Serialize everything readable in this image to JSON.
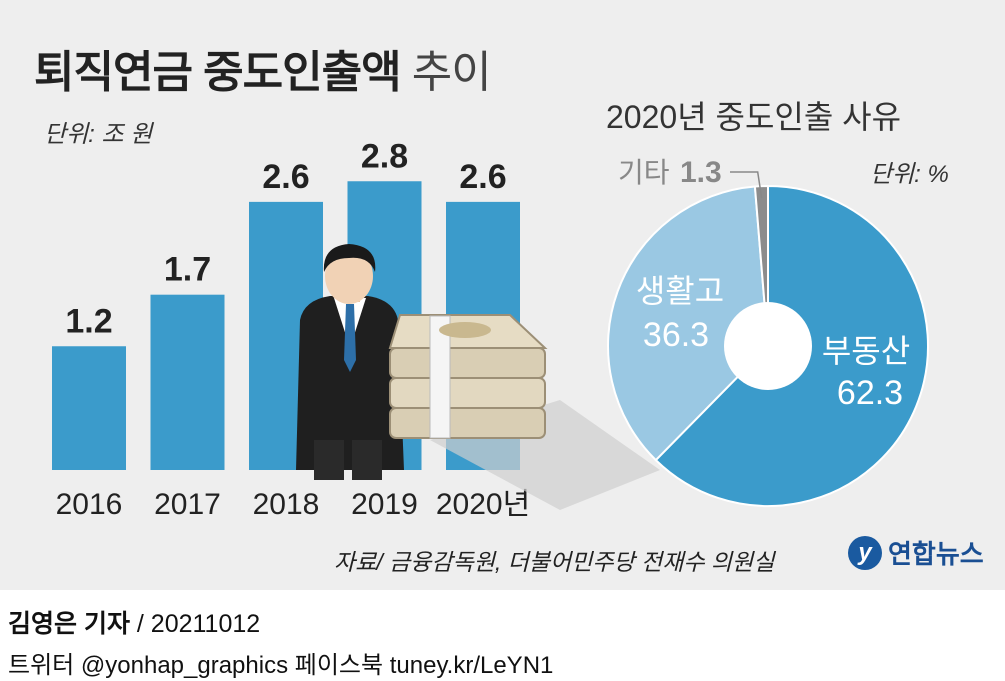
{
  "header": {
    "title_bold": "퇴직연금 중도인출액",
    "title_light": "추이"
  },
  "bar_unit": "단위: 조 원",
  "pie_title": "2020년 중도인출 사유",
  "pie_unit": "단위: %",
  "chart_data": [
    {
      "type": "bar",
      "title": "퇴직연금 중도인출액 추이",
      "ylabel": "조 원",
      "categories": [
        "2016",
        "2017",
        "2018",
        "2019",
        "2020년"
      ],
      "values": [
        1.2,
        1.7,
        2.6,
        2.8,
        2.6
      ],
      "value_labels": [
        "1.2",
        "1.7",
        "2.6",
        "2.8",
        "2.6"
      ],
      "ylim": [
        0,
        3.2
      ],
      "color": "#3b9bcb"
    },
    {
      "type": "pie",
      "title": "2020년 중도인출 사유",
      "unit": "%",
      "slices": [
        {
          "label": "부동산",
          "value": 62.3,
          "value_label": "62.3",
          "color": "#3b9bcb",
          "text_color": "#ffffff"
        },
        {
          "label": "생활고",
          "value": 36.3,
          "value_label": "36.3",
          "color": "#9ac8e3",
          "text_color": "#ffffff"
        },
        {
          "label": "기타",
          "value": 1.3,
          "value_label": "1.3",
          "color": "#8c8c8c",
          "text_color": "#888888"
        }
      ]
    }
  ],
  "source": "자료/ 금융감독원, 더불어민주당 전재수 의원실",
  "brand": {
    "logo": "y",
    "name": "연합뉴스"
  },
  "footer": {
    "reporter": "김영은 기자",
    "date": "/ 20211012",
    "social": "트위터 @yonhap_graphics  페이스북 tuney.kr/LeYN1"
  }
}
